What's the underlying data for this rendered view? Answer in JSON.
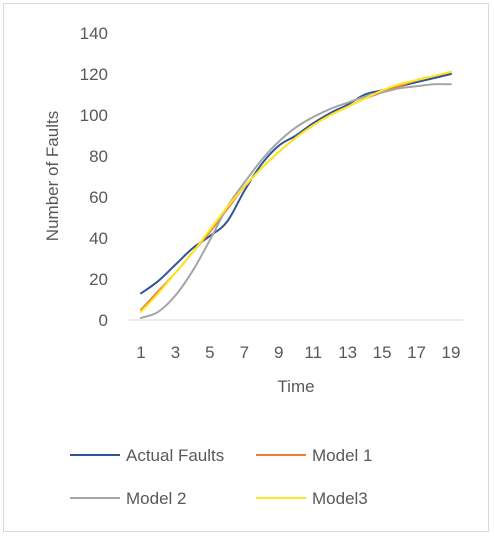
{
  "chart_data": {
    "type": "line",
    "title": "",
    "xlabel": "Time",
    "ylabel": "Number of Faults",
    "x": [
      1,
      2,
      3,
      4,
      5,
      6,
      7,
      8,
      9,
      10,
      11,
      12,
      13,
      14,
      15,
      16,
      17,
      18,
      19
    ],
    "x_tick_labels": [
      "1",
      "3",
      "5",
      "7",
      "9",
      "11",
      "13",
      "15",
      "17",
      "19"
    ],
    "y_tick_labels": [
      "0",
      "20",
      "40",
      "60",
      "80",
      "100",
      "120",
      "140"
    ],
    "ylim": [
      0,
      140
    ],
    "xlim": [
      1,
      19
    ],
    "grid": false,
    "legend_position": "bottom",
    "series": [
      {
        "name": "Actual Faults",
        "color": "#2e5597",
        "values": [
          13,
          19,
          27,
          35,
          41,
          48,
          63,
          76,
          85,
          90,
          96,
          101,
          105,
          110,
          112,
          114,
          116,
          118,
          120
        ]
      },
      {
        "name": "Model 1",
        "color": "#ed7d31",
        "values": [
          5,
          14,
          23,
          33,
          43,
          54,
          65,
          74,
          82,
          89,
          95,
          100,
          104,
          108,
          111,
          114,
          117,
          119,
          121
        ]
      },
      {
        "name": "Model 2",
        "color": "#a5a5a5",
        "values": [
          1,
          4,
          12,
          24,
          39,
          55,
          67,
          78,
          87,
          94,
          99,
          103,
          106,
          109,
          111,
          113,
          114,
          115,
          115
        ]
      },
      {
        "name": "Model3",
        "color": "#ffe81f",
        "values": [
          4,
          13,
          23,
          33,
          44,
          55,
          65,
          74,
          82,
          89,
          95,
          100,
          104,
          108,
          112,
          115,
          117,
          119,
          121
        ]
      }
    ]
  }
}
